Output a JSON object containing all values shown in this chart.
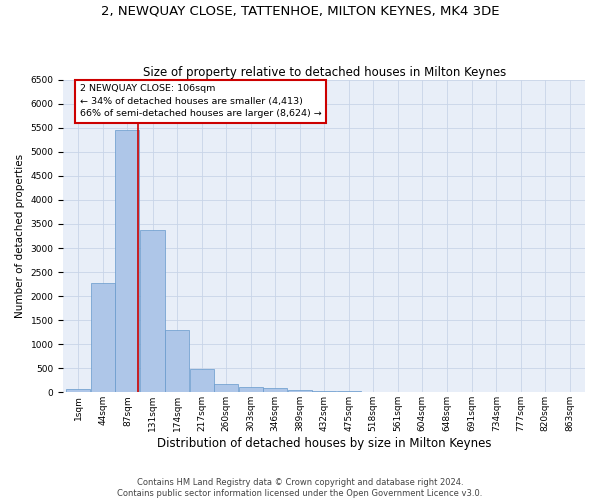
{
  "title": "2, NEWQUAY CLOSE, TATTENHOE, MILTON KEYNES, MK4 3DE",
  "subtitle": "Size of property relative to detached houses in Milton Keynes",
  "xlabel": "Distribution of detached houses by size in Milton Keynes",
  "ylabel": "Number of detached properties",
  "bin_labels": [
    "1sqm",
    "44sqm",
    "87sqm",
    "131sqm",
    "174sqm",
    "217sqm",
    "260sqm",
    "303sqm",
    "346sqm",
    "389sqm",
    "432sqm",
    "475sqm",
    "518sqm",
    "561sqm",
    "604sqm",
    "648sqm",
    "691sqm",
    "734sqm",
    "777sqm",
    "820sqm",
    "863sqm"
  ],
  "bin_centers": [
    1,
    44,
    87,
    131,
    174,
    217,
    260,
    303,
    346,
    389,
    432,
    475,
    518,
    561,
    604,
    648,
    691,
    734,
    777,
    820,
    863
  ],
  "bar_values": [
    70,
    2280,
    5450,
    3380,
    1300,
    480,
    170,
    100,
    80,
    50,
    30,
    20,
    10,
    5,
    5,
    3,
    2,
    2,
    1,
    1,
    1
  ],
  "bar_color": "#aec6e8",
  "bar_edge_color": "#6699cc",
  "grid_color": "#c8d4e8",
  "bg_color": "#e8eef8",
  "property_size": 106,
  "red_line_color": "#cc0000",
  "annotation_text": "2 NEWQUAY CLOSE: 106sqm\n← 34% of detached houses are smaller (4,413)\n66% of semi-detached houses are larger (8,624) →",
  "annotation_box_color": "#cc0000",
  "ylim": [
    0,
    6500
  ],
  "yticks": [
    0,
    500,
    1000,
    1500,
    2000,
    2500,
    3000,
    3500,
    4000,
    4500,
    5000,
    5500,
    6000,
    6500
  ],
  "footer_line1": "Contains HM Land Registry data © Crown copyright and database right 2024.",
  "footer_line2": "Contains public sector information licensed under the Open Government Licence v3.0.",
  "title_fontsize": 9.5,
  "subtitle_fontsize": 8.5,
  "xlabel_fontsize": 8.5,
  "ylabel_fontsize": 7.5,
  "tick_fontsize": 6.5,
  "annot_fontsize": 6.8,
  "footer_fontsize": 6.0
}
